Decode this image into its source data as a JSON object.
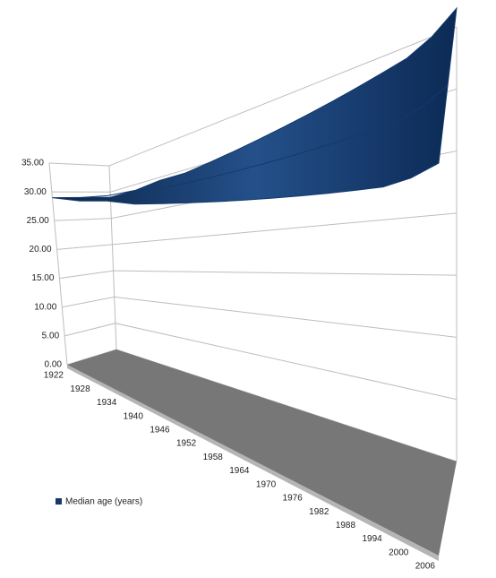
{
  "chart_data": {
    "type": "ribbon3d",
    "categories": [
      "1922",
      "1928",
      "1934",
      "1940",
      "1946",
      "1952",
      "1958",
      "1964",
      "1970",
      "1976",
      "1982",
      "1988",
      "1994",
      "2000",
      "2006"
    ],
    "series": [
      {
        "name": "Median age (years)",
        "color": "#123a6b",
        "values": [
          29,
          29,
          29.5,
          29.5,
          30,
          30.5,
          31,
          31.5,
          32,
          32.5,
          33,
          33.5,
          34,
          35,
          36.5
        ]
      }
    ],
    "ylim": [
      0,
      35
    ],
    "yticks": [
      {
        "value": 0,
        "label": "0.00"
      },
      {
        "value": 5,
        "label": "5.00"
      },
      {
        "value": 10,
        "label": "10.00"
      },
      {
        "value": 15,
        "label": "15.00"
      },
      {
        "value": 20,
        "label": "20.00"
      },
      {
        "value": 25,
        "label": "25.00"
      },
      {
        "value": 30,
        "label": "30.00"
      },
      {
        "value": 35,
        "label": "35.00"
      }
    ],
    "grid": true,
    "legend": "bottom-left"
  }
}
